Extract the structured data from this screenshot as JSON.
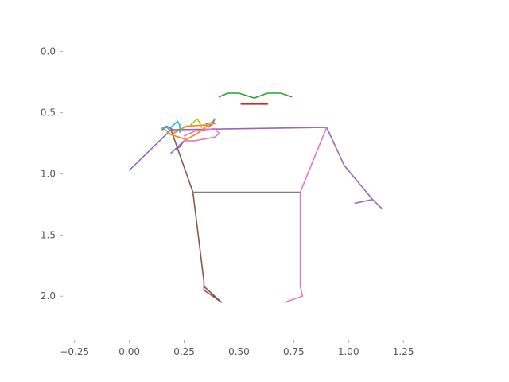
{
  "chart_data": {
    "type": "line",
    "title": "",
    "xlabel": "",
    "ylabel": "",
    "xlim": [
      -0.3,
      1.5
    ],
    "ylim": [
      2.35,
      -0.05
    ],
    "y_inverted": true,
    "grid": false,
    "x_ticks": [
      "−0.25",
      "0.00",
      "0.25",
      "0.50",
      "0.75",
      "1.00",
      "1.25"
    ],
    "x_tick_values": [
      -0.25,
      0.0,
      0.25,
      0.5,
      0.75,
      1.0,
      1.25
    ],
    "y_ticks": [
      "0.0",
      "0.5",
      "1.0",
      "1.5",
      "2.0"
    ],
    "y_tick_values": [
      0.0,
      0.5,
      1.0,
      1.5,
      2.0
    ],
    "series": [
      {
        "color": "#2ca02c",
        "x": [
          0.41,
          0.45,
          0.5,
          0.57,
          0.63,
          0.69,
          0.74
        ],
        "y": [
          0.37,
          0.34,
          0.34,
          0.38,
          0.34,
          0.34,
          0.37
        ]
      },
      {
        "color": "#d62728",
        "x": [
          0.51,
          0.63
        ],
        "y": [
          0.43,
          0.43
        ]
      },
      {
        "color": "#9467bd",
        "x": [
          0.0,
          0.19,
          0.9,
          0.98,
          1.11,
          1.15,
          1.11,
          1.03
        ],
        "y": [
          0.97,
          0.64,
          0.62,
          0.93,
          1.21,
          1.28,
          1.21,
          1.24
        ]
      },
      {
        "color": "#9467bd",
        "x": [
          0.15,
          0.17,
          0.2
        ],
        "y": [
          0.64,
          0.61,
          0.64
        ]
      },
      {
        "color": "#9467bd",
        "x": [
          0.19,
          0.25,
          0.23,
          0.2
        ],
        "y": [
          0.83,
          0.73,
          0.78,
          0.81
        ]
      },
      {
        "color": "#8c564b",
        "x": [
          0.19,
          0.29,
          0.34,
          0.34,
          0.42,
          0.34
        ],
        "y": [
          0.64,
          1.15,
          1.88,
          1.95,
          2.05,
          1.92
        ]
      },
      {
        "color": "#7f7f7f",
        "x": [
          0.29,
          0.78
        ],
        "y": [
          1.15,
          1.15
        ]
      },
      {
        "color": "#7f7f7f",
        "x": [
          0.36,
          0.38,
          0.39,
          0.38,
          0.35
        ],
        "y": [
          0.62,
          0.59,
          0.55,
          0.58,
          0.59
        ]
      },
      {
        "color": "#e377c2",
        "x": [
          0.9,
          0.78,
          0.78,
          0.79,
          0.71,
          0.79,
          0.78
        ],
        "y": [
          0.62,
          1.15,
          1.92,
          2.0,
          2.05,
          2.0,
          1.92
        ]
      },
      {
        "color": "#e377c2",
        "x": [
          0.25,
          0.3,
          0.39,
          0.41,
          0.39,
          0.3,
          0.25
        ],
        "y": [
          0.73,
          0.73,
          0.7,
          0.67,
          0.63,
          0.65,
          0.69
        ]
      },
      {
        "color": "#ff7f0e",
        "x": [
          0.15,
          0.19,
          0.26,
          0.36,
          0.39
        ],
        "y": [
          0.62,
          0.68,
          0.61,
          0.6,
          0.59
        ]
      },
      {
        "color": "#ff7f0e",
        "x": [
          0.19,
          0.26,
          0.31,
          0.36
        ],
        "y": [
          0.68,
          0.72,
          0.67,
          0.6
        ]
      },
      {
        "color": "#bcbd22",
        "x": [
          0.28,
          0.31,
          0.32,
          0.33
        ],
        "y": [
          0.6,
          0.55,
          0.58,
          0.62
        ]
      },
      {
        "color": "#17becf",
        "x": [
          0.19,
          0.22,
          0.23,
          0.23
        ],
        "y": [
          0.62,
          0.57,
          0.6,
          0.66
        ]
      },
      {
        "color": "#17becf",
        "x": [
          0.15,
          0.17,
          0.19
        ],
        "y": [
          0.63,
          0.62,
          0.65
        ]
      }
    ]
  }
}
